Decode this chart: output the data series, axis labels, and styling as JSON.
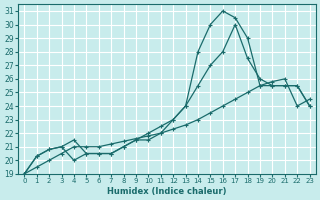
{
  "xlabel": "Humidex (Indice chaleur)",
  "bg_color": "#c8ecec",
  "grid_color": "#ffffff",
  "line_color": "#1a6b6b",
  "xlim": [
    -0.5,
    23.5
  ],
  "ylim": [
    19,
    31.5
  ],
  "xticks": [
    0,
    1,
    2,
    3,
    4,
    5,
    6,
    7,
    8,
    9,
    10,
    11,
    12,
    13,
    14,
    15,
    16,
    17,
    18,
    19,
    20,
    21,
    22,
    23
  ],
  "yticks": [
    19,
    20,
    21,
    22,
    23,
    24,
    25,
    26,
    27,
    28,
    29,
    30,
    31
  ],
  "line_top_x": [
    0,
    1,
    2,
    3,
    4,
    5,
    6,
    7,
    8,
    9,
    10,
    11,
    12,
    13,
    14,
    15,
    16,
    17,
    18,
    19,
    20,
    21,
    22,
    23
  ],
  "line_top_y": [
    19.0,
    20.3,
    20.8,
    21.0,
    20.0,
    20.5,
    20.5,
    20.5,
    21.0,
    21.5,
    21.5,
    22.0,
    23.0,
    24.0,
    28.0,
    30.0,
    31.0,
    30.5,
    29.0,
    25.5,
    25.5,
    25.5,
    25.5,
    24.0
  ],
  "line_mid_x": [
    0,
    1,
    2,
    3,
    4,
    5,
    6,
    7,
    8,
    9,
    10,
    11,
    12,
    13,
    14,
    15,
    16,
    17,
    18,
    19,
    20,
    21,
    22,
    23
  ],
  "line_mid_y": [
    19.0,
    20.3,
    20.8,
    21.0,
    21.5,
    20.5,
    20.5,
    20.5,
    21.0,
    21.5,
    22.0,
    22.5,
    23.0,
    24.0,
    25.5,
    27.0,
    28.0,
    30.0,
    27.5,
    26.0,
    25.5,
    25.5,
    25.5,
    24.0
  ],
  "line_bot_x": [
    0,
    1,
    2,
    3,
    4,
    5,
    6,
    7,
    8,
    9,
    10,
    11,
    12,
    13,
    14,
    15,
    16,
    17,
    18,
    19,
    20,
    21,
    22,
    23
  ],
  "line_bot_y": [
    19.0,
    19.5,
    20.0,
    20.5,
    21.0,
    21.0,
    21.0,
    21.2,
    21.4,
    21.6,
    21.8,
    22.0,
    22.3,
    22.6,
    23.0,
    23.5,
    24.0,
    24.5,
    25.0,
    25.5,
    25.8,
    26.0,
    24.0,
    24.5
  ]
}
